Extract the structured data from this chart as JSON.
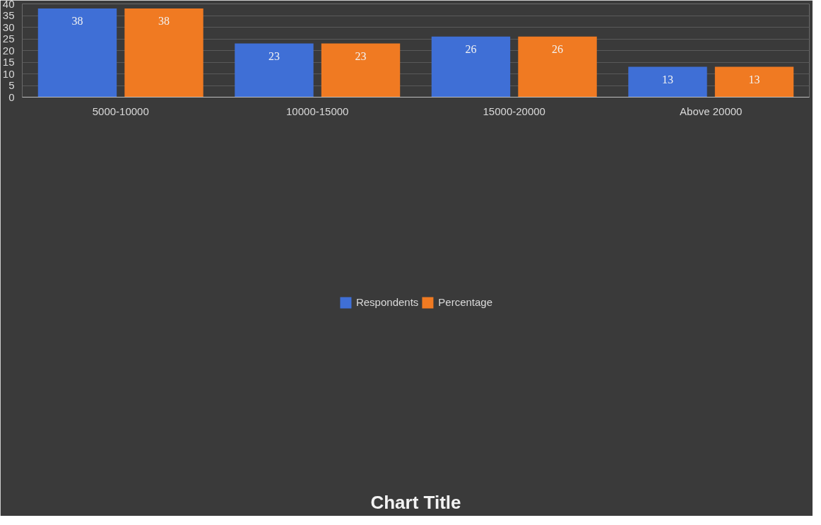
{
  "chart_data": {
    "type": "bar",
    "title": "Chart Title",
    "categories": [
      "5000-10000",
      "10000-15000",
      "15000-20000",
      "Above 20000"
    ],
    "series": [
      {
        "name": "Respondents",
        "color": "#3f6fd6",
        "values": [
          38,
          23,
          26,
          13
        ]
      },
      {
        "name": "Percentage",
        "color": "#f07a22",
        "values": [
          38,
          23,
          26,
          13
        ]
      }
    ],
    "ylim": [
      0,
      40
    ],
    "yticks": [
      0,
      5,
      10,
      15,
      20,
      25,
      30,
      35,
      40
    ],
    "grid": "y",
    "legend": "bottom",
    "data_labels": true
  }
}
